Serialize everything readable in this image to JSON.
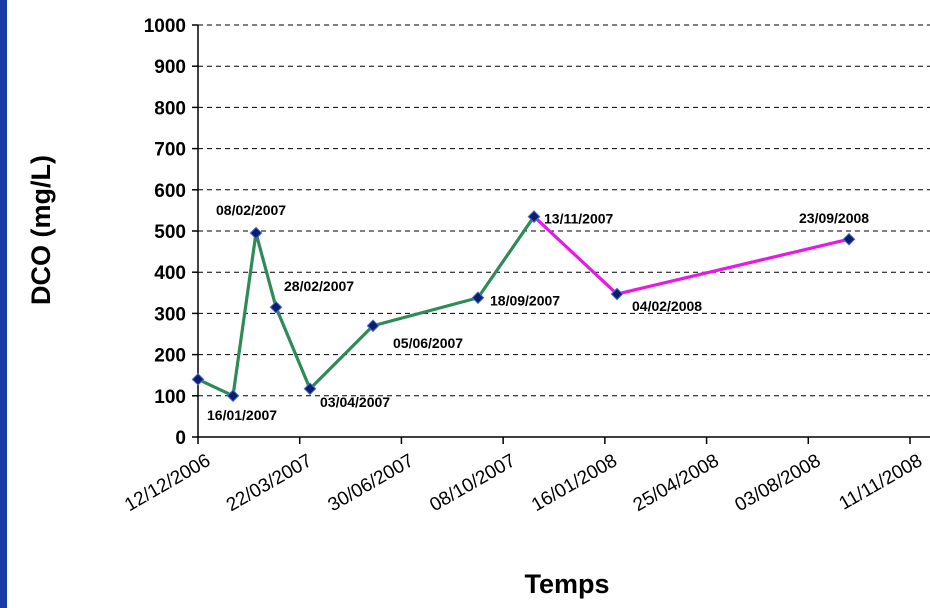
{
  "chart_data": {
    "type": "line",
    "xlabel": "Temps",
    "ylabel": "DCO (mg/L)",
    "ylim": [
      0,
      1000
    ],
    "yticks": [
      0,
      100,
      200,
      300,
      400,
      500,
      600,
      700,
      800,
      900,
      1000
    ],
    "grid": "horizontal dashed",
    "x_axis": {
      "type": "date",
      "start": "2006-12-12",
      "end": "2008-11-23",
      "tick_labels": [
        "12/12/2006",
        "22/03/2007",
        "30/06/2007",
        "08/10/2007",
        "16/01/2008",
        "25/04/2008",
        "03/08/2008",
        "11/11/2008"
      ]
    },
    "series": [
      {
        "color": "#2e8b57",
        "points": [
          {
            "x": "2006-12-12",
            "y": 140,
            "label": ""
          },
          {
            "x": "2007-01-16",
            "y": 100,
            "label": "16/01/2007"
          },
          {
            "x": "2007-02-08",
            "y": 495,
            "label": "08/02/2007"
          },
          {
            "x": "2007-02-28",
            "y": 315,
            "label": "28/02/2007"
          },
          {
            "x": "2007-04-03",
            "y": 117,
            "label": "03/04/2007"
          },
          {
            "x": "2007-06-05",
            "y": 270,
            "label": "05/06/2007"
          },
          {
            "x": "2007-09-18",
            "y": 338,
            "label": "18/09/2007"
          },
          {
            "x": "2007-11-13",
            "y": 535,
            "label": "13/11/2007"
          }
        ]
      },
      {
        "color": "#e619e6",
        "points": [
          {
            "x": "2007-11-13",
            "y": 535,
            "label": ""
          },
          {
            "x": "2008-02-04",
            "y": 347,
            "label": "04/02/2008"
          },
          {
            "x": "2008-09-23",
            "y": 480,
            "label": "23/09/2008"
          }
        ]
      }
    ],
    "marker_color": "#0b1e6b"
  }
}
